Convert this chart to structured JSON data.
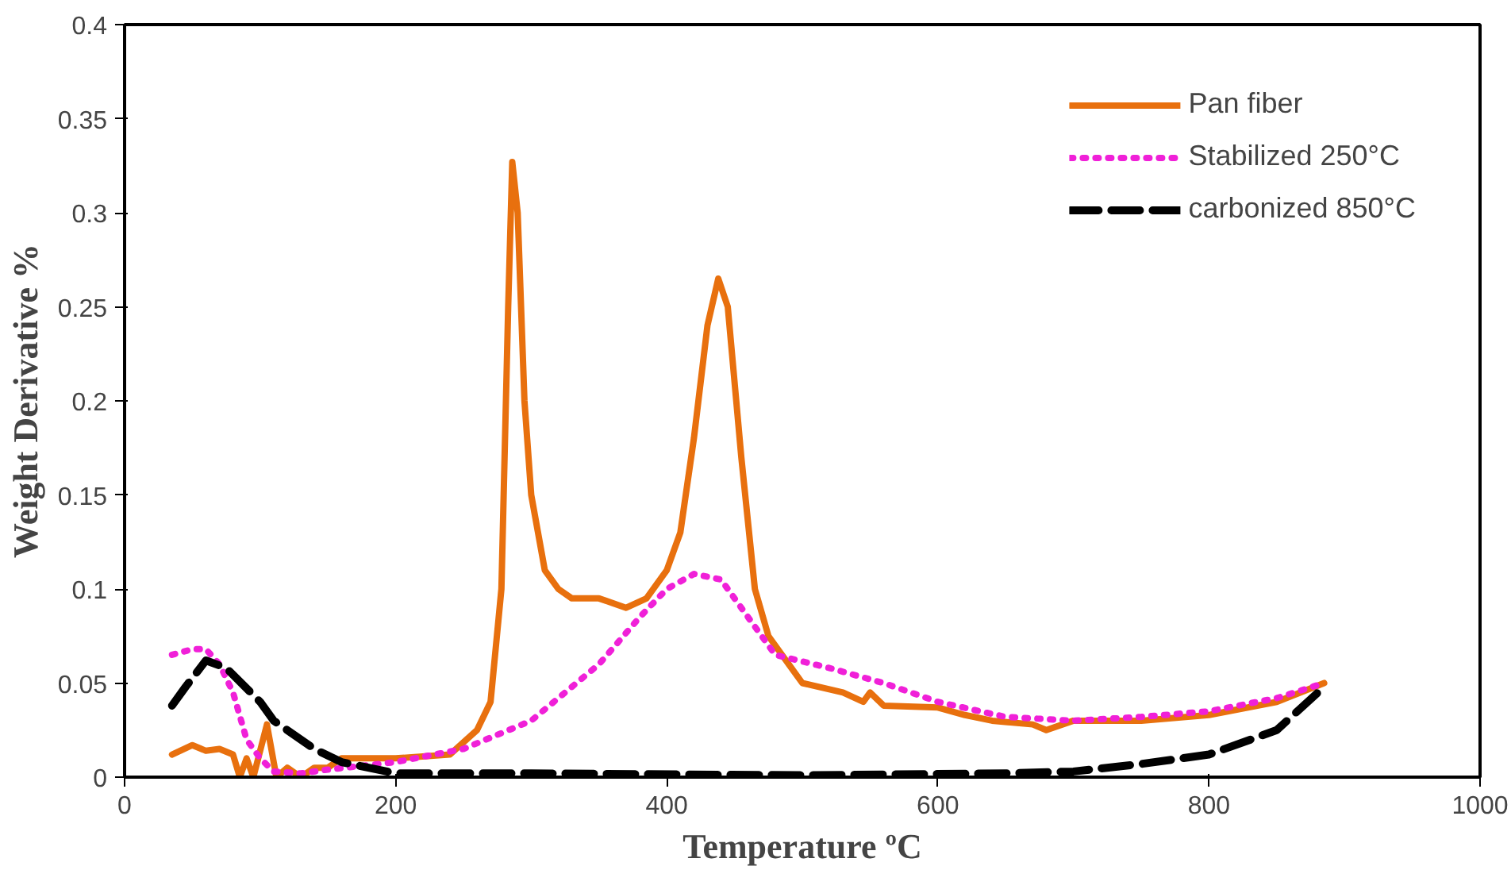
{
  "chart_data": {
    "type": "line",
    "xlabel": "Temperature ºC",
    "ylabel": "Weight Derivative %",
    "xlim": [
      0,
      1000
    ],
    "ylim": [
      0,
      0.4
    ],
    "xticks": [
      0,
      200,
      400,
      600,
      800,
      1000
    ],
    "yticks": [
      0,
      0.05,
      0.1,
      0.15,
      0.2,
      0.25,
      0.3,
      0.35,
      0.4
    ],
    "grid": false,
    "legend": "top right",
    "series": [
      {
        "name": "Pan fiber",
        "color": "#e8700e",
        "line_style": "solid",
        "x": [
          35,
          50,
          60,
          70,
          80,
          85,
          90,
          95,
          105,
          112,
          120,
          130,
          140,
          150,
          160,
          200,
          240,
          260,
          270,
          278,
          283,
          286,
          290,
          295,
          300,
          310,
          320,
          330,
          350,
          370,
          385,
          400,
          410,
          420,
          430,
          438,
          445,
          455,
          465,
          475,
          490,
          500,
          530,
          545,
          550,
          560,
          600,
          620,
          640,
          670,
          680,
          700,
          750,
          800,
          850,
          885
        ],
        "values": [
          0.012,
          0.017,
          0.014,
          0.015,
          0.012,
          0,
          0.01,
          0,
          0.028,
          0,
          0.005,
          0,
          0.005,
          0.005,
          0.01,
          0.01,
          0.012,
          0.025,
          0.04,
          0.1,
          0.25,
          0.327,
          0.3,
          0.2,
          0.15,
          0.11,
          0.1,
          0.095,
          0.095,
          0.09,
          0.095,
          0.11,
          0.13,
          0.18,
          0.24,
          0.265,
          0.25,
          0.17,
          0.1,
          0.075,
          0.06,
          0.05,
          0.045,
          0.04,
          0.045,
          0.038,
          0.037,
          0.033,
          0.03,
          0.028,
          0.025,
          0.03,
          0.03,
          0.033,
          0.04,
          0.05
        ]
      },
      {
        "name": "Stabilized 250°C",
        "color": "#f020d8",
        "line_style": "dotted",
        "x": [
          35,
          50,
          60,
          70,
          80,
          90,
          100,
          110,
          130,
          150,
          200,
          250,
          300,
          350,
          380,
          400,
          420,
          440,
          460,
          480,
          520,
          560,
          600,
          650,
          700,
          750,
          800,
          850,
          885
        ],
        "values": [
          0.065,
          0.068,
          0.068,
          0.06,
          0.045,
          0.02,
          0.01,
          0.003,
          0.002,
          0.004,
          0.008,
          0.015,
          0.03,
          0.06,
          0.085,
          0.1,
          0.108,
          0.105,
          0.085,
          0.065,
          0.058,
          0.05,
          0.04,
          0.032,
          0.03,
          0.032,
          0.035,
          0.042,
          0.05
        ]
      },
      {
        "name": "carbonized 850°C",
        "color": "#000000",
        "line_style": "dashed",
        "x": [
          35,
          45,
          60,
          75,
          100,
          110,
          140,
          160,
          200,
          300,
          500,
          650,
          700,
          750,
          800,
          850,
          885
        ],
        "values": [
          0.038,
          0.048,
          0.062,
          0.058,
          0.04,
          0.03,
          0.015,
          0.008,
          0.002,
          0.002,
          0.001,
          0.002,
          0.003,
          0.007,
          0.012,
          0.025,
          0.048
        ]
      }
    ]
  }
}
